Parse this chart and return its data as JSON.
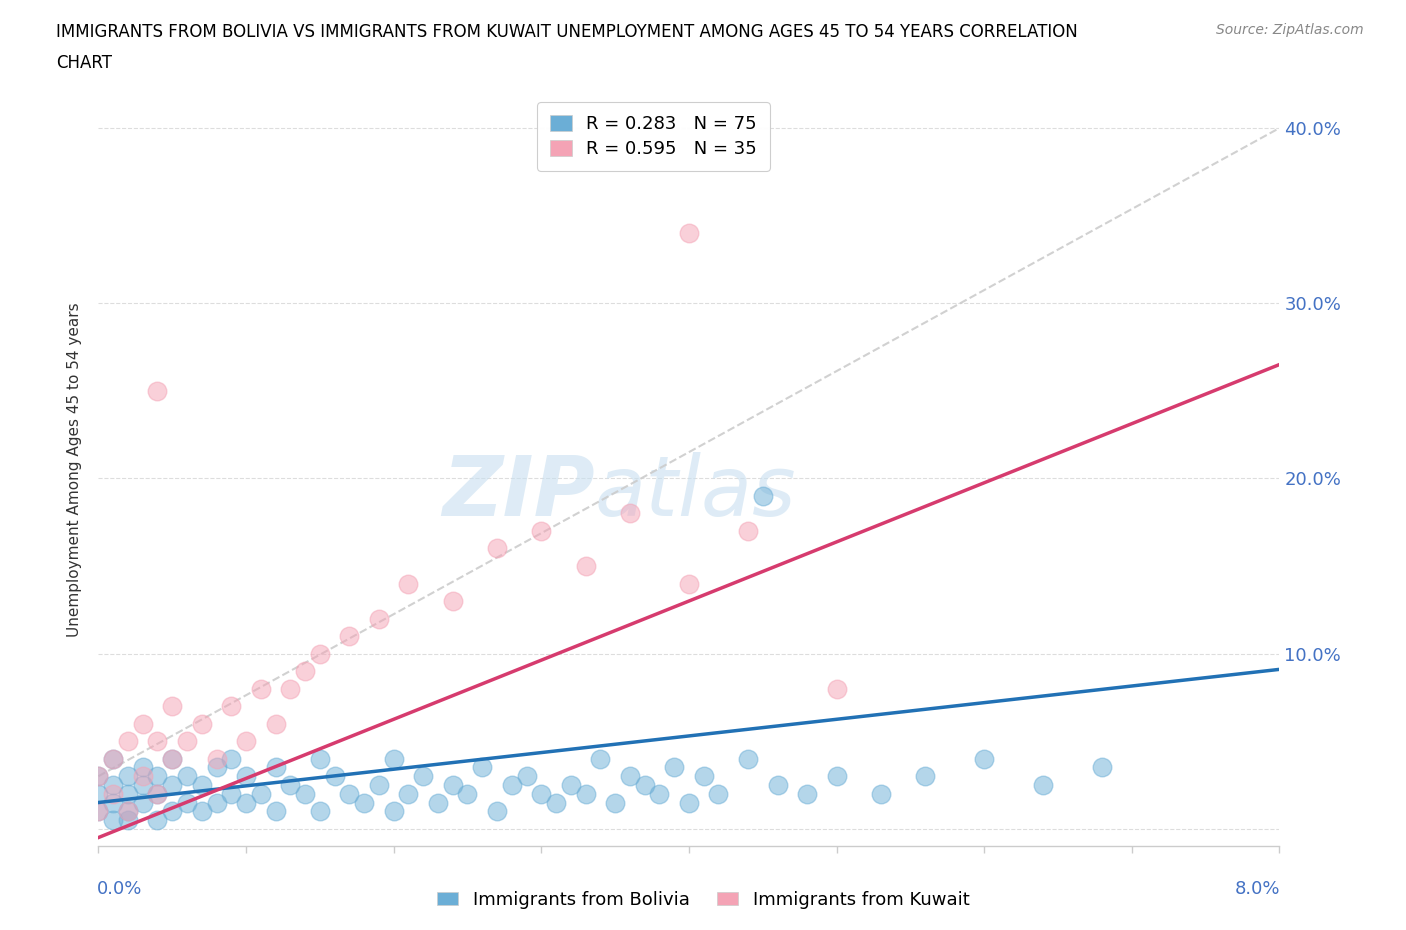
{
  "title_line1": "IMMIGRANTS FROM BOLIVIA VS IMMIGRANTS FROM KUWAIT UNEMPLOYMENT AMONG AGES 45 TO 54 YEARS CORRELATION",
  "title_line2": "CHART",
  "source": "Source: ZipAtlas.com",
  "ylabel": "Unemployment Among Ages 45 to 54 years",
  "legend_bolivia": "Immigrants from Bolivia",
  "legend_kuwait": "Immigrants from Kuwait",
  "r_bolivia": 0.283,
  "n_bolivia": 75,
  "r_kuwait": 0.595,
  "n_kuwait": 35,
  "color_bolivia": "#6baed6",
  "color_kuwait": "#f4a3b5",
  "color_trend_bolivia": "#2171b5",
  "color_trend_kuwait": "#d63b6e",
  "watermark_zip": "ZIP",
  "watermark_atlas": "atlas",
  "xlim": [
    0.0,
    0.08
  ],
  "ylim": [
    -0.01,
    0.42
  ],
  "yticks": [
    0.0,
    0.1,
    0.2,
    0.3,
    0.4
  ],
  "bolivia_x": [
    0.0,
    0.0,
    0.0,
    0.001,
    0.001,
    0.001,
    0.001,
    0.002,
    0.002,
    0.002,
    0.002,
    0.003,
    0.003,
    0.003,
    0.004,
    0.004,
    0.004,
    0.005,
    0.005,
    0.005,
    0.006,
    0.006,
    0.007,
    0.007,
    0.008,
    0.008,
    0.009,
    0.009,
    0.01,
    0.01,
    0.011,
    0.012,
    0.012,
    0.013,
    0.014,
    0.015,
    0.015,
    0.016,
    0.017,
    0.018,
    0.019,
    0.02,
    0.02,
    0.021,
    0.022,
    0.023,
    0.024,
    0.025,
    0.026,
    0.027,
    0.028,
    0.029,
    0.03,
    0.031,
    0.032,
    0.033,
    0.034,
    0.035,
    0.036,
    0.037,
    0.038,
    0.039,
    0.04,
    0.041,
    0.042,
    0.044,
    0.046,
    0.048,
    0.05,
    0.053,
    0.056,
    0.06,
    0.064,
    0.068,
    0.045
  ],
  "bolivia_y": [
    0.01,
    0.02,
    0.03,
    0.005,
    0.015,
    0.025,
    0.04,
    0.01,
    0.02,
    0.03,
    0.005,
    0.015,
    0.025,
    0.035,
    0.005,
    0.02,
    0.03,
    0.01,
    0.025,
    0.04,
    0.015,
    0.03,
    0.01,
    0.025,
    0.015,
    0.035,
    0.02,
    0.04,
    0.015,
    0.03,
    0.02,
    0.01,
    0.035,
    0.025,
    0.02,
    0.01,
    0.04,
    0.03,
    0.02,
    0.015,
    0.025,
    0.01,
    0.04,
    0.02,
    0.03,
    0.015,
    0.025,
    0.02,
    0.035,
    0.01,
    0.025,
    0.03,
    0.02,
    0.015,
    0.025,
    0.02,
    0.04,
    0.015,
    0.03,
    0.025,
    0.02,
    0.035,
    0.015,
    0.03,
    0.02,
    0.04,
    0.025,
    0.02,
    0.03,
    0.02,
    0.03,
    0.04,
    0.025,
    0.035,
    0.19
  ],
  "kuwait_x": [
    0.0,
    0.0,
    0.001,
    0.001,
    0.002,
    0.002,
    0.003,
    0.003,
    0.004,
    0.004,
    0.005,
    0.005,
    0.006,
    0.007,
    0.008,
    0.009,
    0.01,
    0.011,
    0.012,
    0.013,
    0.014,
    0.015,
    0.017,
    0.019,
    0.021,
    0.024,
    0.027,
    0.03,
    0.033,
    0.036,
    0.04,
    0.044,
    0.05,
    0.004,
    0.04
  ],
  "kuwait_y": [
    0.01,
    0.03,
    0.02,
    0.04,
    0.01,
    0.05,
    0.03,
    0.06,
    0.02,
    0.05,
    0.04,
    0.07,
    0.05,
    0.06,
    0.04,
    0.07,
    0.05,
    0.08,
    0.06,
    0.08,
    0.09,
    0.1,
    0.11,
    0.12,
    0.14,
    0.13,
    0.16,
    0.17,
    0.15,
    0.18,
    0.14,
    0.17,
    0.08,
    0.25,
    0.34
  ],
  "trend_bolivia": [
    0.0,
    0.001,
    0.08,
    0.091
  ],
  "trend_kuwait": [
    0.0,
    -0.01,
    0.08,
    0.26
  ]
}
